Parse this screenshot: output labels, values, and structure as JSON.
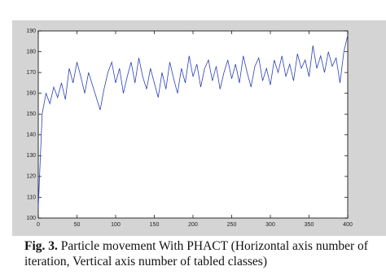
{
  "chart_data": {
    "type": "line",
    "x": [
      0,
      5,
      10,
      15,
      20,
      25,
      30,
      35,
      40,
      45,
      50,
      55,
      60,
      65,
      70,
      75,
      80,
      85,
      90,
      95,
      100,
      105,
      110,
      115,
      120,
      125,
      130,
      135,
      140,
      145,
      150,
      155,
      160,
      165,
      170,
      175,
      180,
      185,
      190,
      195,
      200,
      205,
      210,
      215,
      220,
      225,
      230,
      235,
      240,
      245,
      250,
      255,
      260,
      265,
      270,
      275,
      280,
      285,
      290,
      295,
      300,
      305,
      310,
      315,
      320,
      325,
      330,
      335,
      340,
      345,
      350,
      355,
      360,
      365,
      370,
      375,
      380,
      385,
      390,
      395,
      400
    ],
    "series": [
      {
        "color": "#2b3fb5",
        "values": [
          105,
          150,
          160,
          155,
          163,
          158,
          165,
          157,
          172,
          165,
          175,
          168,
          160,
          170,
          164,
          158,
          152,
          162,
          170,
          175,
          165,
          172,
          160,
          168,
          175,
          165,
          177,
          168,
          162,
          172,
          165,
          158,
          170,
          162,
          175,
          167,
          160,
          172,
          165,
          178,
          168,
          174,
          163,
          172,
          176,
          166,
          173,
          162,
          170,
          176,
          167,
          174,
          165,
          178,
          170,
          163,
          173,
          177,
          166,
          172,
          164,
          176,
          170,
          178,
          168,
          174,
          166,
          179,
          172,
          176,
          168,
          183,
          172,
          178,
          170,
          180,
          173,
          177,
          165,
          180,
          188
        ]
      }
    ],
    "xlim": [
      0,
      400
    ],
    "xticks": [
      0,
      50,
      100,
      150,
      200,
      250,
      300,
      350,
      400
    ],
    "ylim": [
      100,
      190
    ],
    "yticks": [
      100,
      110,
      120,
      130,
      140,
      150,
      160,
      170,
      180,
      190
    ]
  },
  "caption": {
    "label": "Fig. 3.",
    "text": "Particle movement With PHACT (Horizontal axis number of iteration, Vertical axis number of tabled classes)"
  }
}
